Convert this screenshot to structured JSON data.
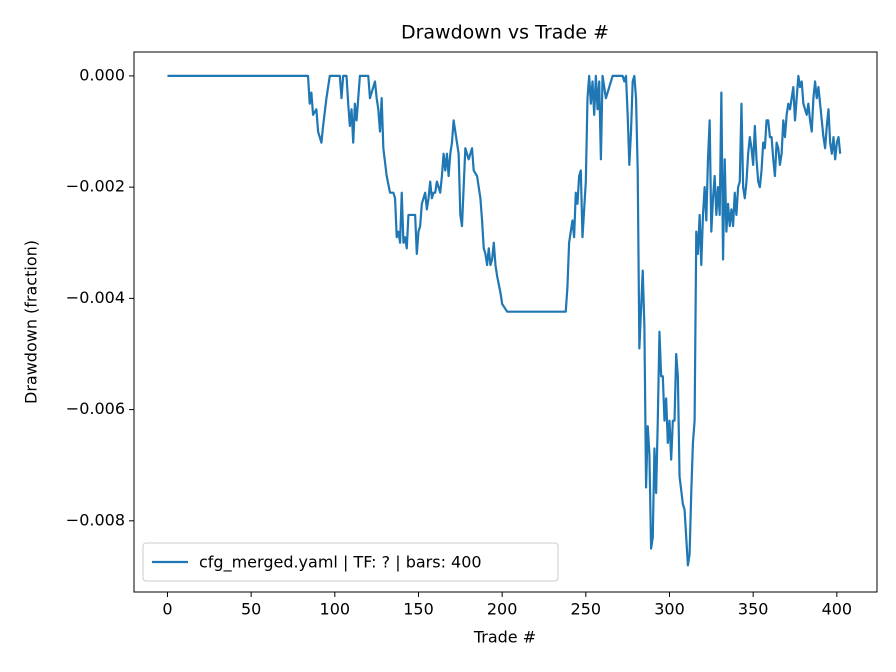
{
  "chart_data": {
    "type": "line",
    "title": "Drawdown vs Trade #",
    "x_label": "Trade #",
    "y_label": "Drawdown (fraction)",
    "x": [
      0,
      84,
      85,
      86,
      87,
      89,
      90,
      92,
      93,
      95,
      97,
      100,
      103,
      104,
      105,
      107,
      108,
      109,
      110,
      111,
      112,
      113,
      115,
      120,
      121,
      122,
      123,
      124,
      125,
      126,
      127,
      128,
      129,
      131,
      133,
      135,
      136,
      137,
      138,
      139,
      140,
      141,
      142,
      143,
      144,
      148,
      149,
      150,
      151,
      152,
      153,
      154,
      155,
      156,
      157,
      158,
      159,
      160,
      161,
      163,
      164,
      165,
      166,
      167,
      168,
      169,
      170,
      171,
      172,
      174,
      175,
      176,
      177,
      178,
      180,
      182,
      183,
      185,
      187,
      188,
      189,
      190,
      191,
      192,
      193,
      194,
      195,
      196,
      197,
      199,
      200,
      203,
      238,
      239,
      240,
      242,
      243,
      244,
      245,
      246,
      247,
      248,
      249,
      250,
      251,
      252,
      253,
      254,
      255,
      256,
      257,
      258,
      259,
      260,
      262,
      264,
      266,
      272,
      273,
      274,
      275,
      276,
      277,
      278,
      279,
      280,
      281,
      282,
      283,
      284,
      285,
      286,
      287,
      288,
      289,
      290,
      291,
      292,
      293,
      294,
      295,
      296,
      297,
      298,
      299,
      300,
      301,
      302,
      303,
      304,
      305,
      306,
      308,
      309,
      310,
      311,
      312,
      313,
      314,
      315,
      316,
      317,
      318,
      319,
      320,
      321,
      322,
      323,
      324,
      325,
      326,
      327,
      328,
      329,
      330,
      331,
      332,
      333,
      334,
      335,
      336,
      337,
      338,
      339,
      340,
      341,
      342,
      343,
      344,
      345,
      346,
      347,
      348,
      349,
      350,
      351,
      352,
      353,
      354,
      355,
      356,
      357,
      358,
      359,
      360,
      361,
      362,
      363,
      364,
      365,
      366,
      367,
      368,
      369,
      370,
      371,
      372,
      373,
      374,
      375,
      376,
      377,
      378,
      379,
      380,
      381,
      382,
      383,
      384,
      385,
      386,
      387,
      388,
      389,
      390,
      391,
      392,
      393,
      394,
      395,
      396,
      397,
      398,
      399,
      400,
      401,
      402
    ],
    "series": [
      {
        "name": "cfg_merged.yaml | TF: ? | bars: 400",
        "color": "#1f77b4",
        "values": [
          0,
          0,
          -0.0005,
          -0.0003,
          -0.0007,
          -0.0006,
          -0.001,
          -0.0012,
          -0.0009,
          -0.0004,
          0,
          0,
          0,
          -0.0004,
          0,
          0,
          -0.0005,
          -0.0009,
          -0.0006,
          -0.0012,
          -0.0005,
          -0.0008,
          0,
          0,
          -0.0004,
          -0.0003,
          -0.0002,
          -0.0001,
          -0.0004,
          -0.0006,
          -0.001,
          -0.0004,
          -0.0013,
          -0.0018,
          -0.0021,
          -0.0021,
          -0.0022,
          -0.0029,
          -0.0028,
          -0.003,
          -0.0021,
          -0.003,
          -0.0029,
          -0.0031,
          -0.0025,
          -0.0025,
          -0.0032,
          -0.0028,
          -0.0027,
          -0.0023,
          -0.0022,
          -0.0021,
          -0.0024,
          -0.0022,
          -0.0019,
          -0.0022,
          -0.0021,
          -0.0021,
          -0.0019,
          -0.0021,
          -0.0018,
          -0.0014,
          -0.0017,
          -0.0014,
          -0.0018,
          -0.0014,
          -0.0012,
          -0.0008,
          -0.001,
          -0.0014,
          -0.0025,
          -0.0027,
          -0.002,
          -0.0013,
          -0.0015,
          -0.0013,
          -0.0017,
          -0.0018,
          -0.0022,
          -0.0026,
          -0.0031,
          -0.0032,
          -0.0034,
          -0.0031,
          -0.0034,
          -0.0033,
          -0.003,
          -0.0034,
          -0.0036,
          -0.0039,
          -0.0041,
          -0.00424,
          -0.00424,
          -0.0038,
          -0.003,
          -0.0026,
          -0.0029,
          -0.0021,
          -0.0023,
          -0.0018,
          -0.0017,
          -0.0029,
          -0.0024,
          -0.0019,
          -0.0004,
          0,
          -0.0005,
          -0.0001,
          -0.0007,
          0,
          -0.0006,
          -0.0001,
          -0.0015,
          0,
          -0.0004,
          -0.0002,
          0,
          0,
          -0.0001,
          0,
          -0.0007,
          -0.0016,
          -0.001,
          -0.0001,
          0,
          -0.0004,
          -0.0017,
          -0.0049,
          -0.0042,
          -0.0035,
          -0.0045,
          -0.0074,
          -0.0063,
          -0.0068,
          -0.0085,
          -0.0083,
          -0.0067,
          -0.0075,
          -0.0062,
          -0.0046,
          -0.0054,
          -0.0054,
          -0.0062,
          -0.0058,
          -0.0066,
          -0.0062,
          -0.0069,
          -0.0062,
          -0.0062,
          -0.005,
          -0.0054,
          -0.0072,
          -0.0077,
          -0.0078,
          -0.0083,
          -0.0088,
          -0.0086,
          -0.0075,
          -0.0066,
          -0.0062,
          -0.0028,
          -0.0032,
          -0.0025,
          -0.0034,
          -0.0025,
          -0.002,
          -0.0026,
          -0.0015,
          -0.0008,
          -0.0028,
          -0.0022,
          -0.0018,
          -0.0025,
          -0.002,
          -0.0025,
          -0.0003,
          -0.0033,
          -0.0015,
          -0.0028,
          -0.0023,
          -0.0027,
          -0.0024,
          -0.0027,
          -0.0021,
          -0.0025,
          -0.002,
          -0.0019,
          -0.0005,
          -0.002,
          -0.0022,
          -0.0019,
          -0.0014,
          -0.0011,
          -0.0013,
          -0.0016,
          -0.0009,
          -0.0015,
          -0.0019,
          -0.002,
          -0.0017,
          -0.0012,
          -0.0013,
          -0.0008,
          -0.0008,
          -0.0011,
          -0.0011,
          -0.0015,
          -0.0018,
          -0.0012,
          -0.0013,
          -0.0016,
          -0.0014,
          -0.0008,
          -0.0011,
          -0.0007,
          -0.0005,
          -0.0006,
          -0.0004,
          -0.0002,
          -0.0008,
          -0.0004,
          0,
          -0.0002,
          -0.0001,
          -0.0005,
          -0.0006,
          -0.0007,
          -0.0005,
          -0.0008,
          -0.001,
          -0.0004,
          -0.0001,
          -0.0004,
          -0.0002,
          -0.0005,
          -0.0008,
          -0.0011,
          -0.0013,
          -0.0009,
          -0.0006,
          -0.0012,
          -0.0014,
          -0.0011,
          -0.0015,
          -0.0012,
          -0.0011,
          -0.0014
        ]
      }
    ],
    "xlim": [
      -20,
      424
    ],
    "ylim": [
      -0.00928,
      0.00043
    ],
    "xticks": [
      0,
      50,
      100,
      150,
      200,
      250,
      300,
      350,
      400
    ],
    "yticks": [
      {
        "value": 0,
        "label": "0.000"
      },
      {
        "value": -0.002,
        "label": "−0.002"
      },
      {
        "value": -0.004,
        "label": "−0.004"
      },
      {
        "value": -0.006,
        "label": "−0.006"
      },
      {
        "value": -0.008,
        "label": "−0.008"
      }
    ],
    "legend": "lower left"
  }
}
